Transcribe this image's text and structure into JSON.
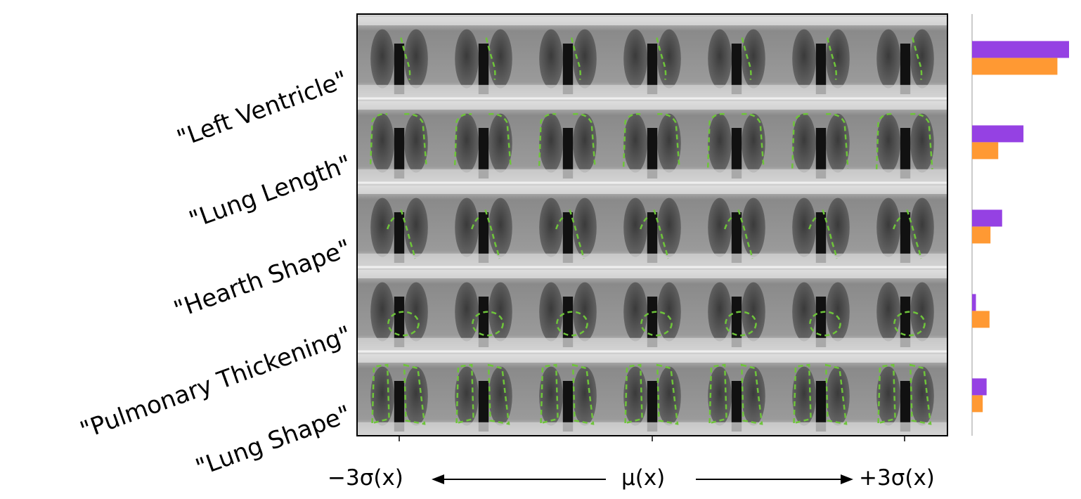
{
  "chart_data": [
    {
      "type": "image_grid",
      "row_labels": [
        "\"Left Ventricle\"",
        "\"Lung Length\"",
        "\"Hearth Shape\"",
        "\"Pulmonary Thickening\"",
        "\"Lung Shape\""
      ],
      "columns": 7,
      "x_axis": {
        "left_label": "−3σ(x)",
        "center_label": "μ(x)",
        "right_label": "+3σ(x)"
      }
    },
    {
      "type": "bar",
      "orientation": "horizontal",
      "categories": [
        "\"Left Ventricle\"",
        "\"Lung Length\"",
        "\"Hearth Shape\"",
        "\"Pulmonary Thickening\"",
        "\"Lung Shape\""
      ],
      "series": [
        {
          "color": "#9541e3",
          "values": [
            1.0,
            0.53,
            0.31,
            0.04,
            0.15
          ]
        },
        {
          "color": "#ff9933",
          "values": [
            0.88,
            0.27,
            0.19,
            0.18,
            0.11
          ]
        }
      ],
      "xlim": [
        0,
        1.0
      ],
      "axis_color": "#cccccc"
    }
  ],
  "colors": {
    "contour": "#6ec43a",
    "frame": "#000000"
  }
}
